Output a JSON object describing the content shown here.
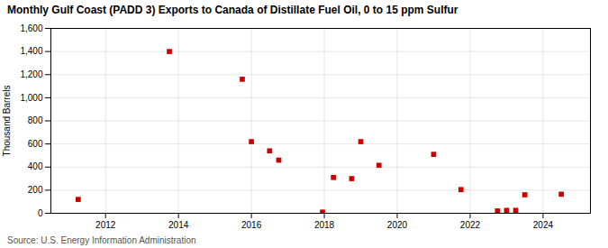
{
  "chart_data": {
    "type": "scatter",
    "title": "Monthly Gulf Coast (PADD 3) Exports to Canada of Distillate Fuel Oil, 0 to 15 ppm Sulfur",
    "ylabel": "Thousand Barrels",
    "caption": "Source: U.S. Energy Information Administration",
    "x": [
      2011.25,
      2013.75,
      2015.75,
      2016.0,
      2016.5,
      2016.75,
      2017.95,
      2018.25,
      2018.75,
      2019.0,
      2019.5,
      2021.0,
      2021.75,
      2022.75,
      2023.0,
      2023.25,
      2023.5,
      2024.5
    ],
    "values": [
      120,
      1400,
      1160,
      620,
      540,
      460,
      10,
      310,
      300,
      620,
      415,
      510,
      205,
      20,
      25,
      25,
      160,
      165
    ],
    "color": "#cc0000",
    "marker": "square",
    "xlim": [
      2010.5,
      2025.3
    ],
    "xticks": [
      2012,
      2014,
      2016,
      2018,
      2020,
      2022,
      2024
    ],
    "ylim": [
      0,
      1600
    ],
    "yticks": [
      0,
      200,
      400,
      600,
      800,
      {
        "value": 1000,
        "label": "1,000"
      },
      {
        "value": 1200,
        "label": "1,200"
      },
      {
        "value": 1400,
        "label": "1,400"
      },
      {
        "value": 1600,
        "label": "1,600"
      }
    ],
    "grid": true
  }
}
